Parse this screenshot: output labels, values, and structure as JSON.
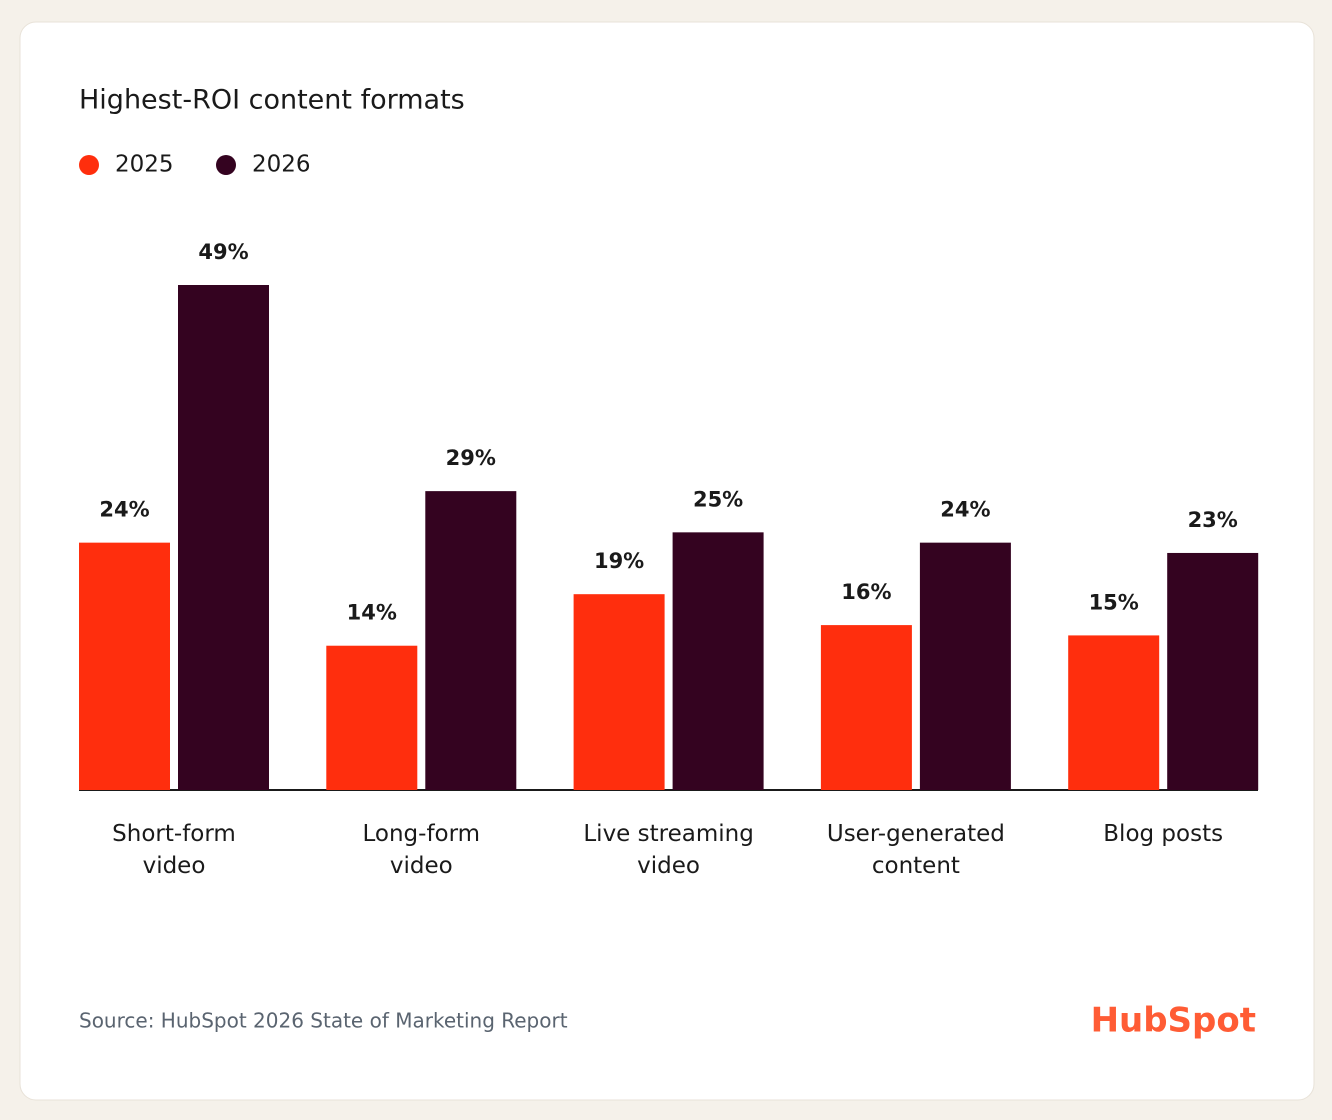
{
  "chart_data": {
    "type": "bar",
    "title": "Highest-ROI content formats",
    "categories": [
      "Short-form video",
      "Long-form video",
      "Live streaming video",
      "User-generated content",
      "Blog posts"
    ],
    "series": [
      {
        "name": "2025",
        "color": "#ff2e0d",
        "values": [
          24,
          14,
          19,
          16,
          15
        ],
        "value_labels": [
          "24%",
          "14%",
          "19%",
          "16%",
          "15%"
        ]
      },
      {
        "name": "2026",
        "color": "#340320",
        "values": [
          49,
          29,
          25,
          24,
          23
        ],
        "value_labels": [
          "49%",
          "29%",
          "25%",
          "24%",
          "23%"
        ]
      }
    ],
    "source": "Source: HubSpot 2026 State of Marketing Report",
    "brand": "HubSpot"
  }
}
